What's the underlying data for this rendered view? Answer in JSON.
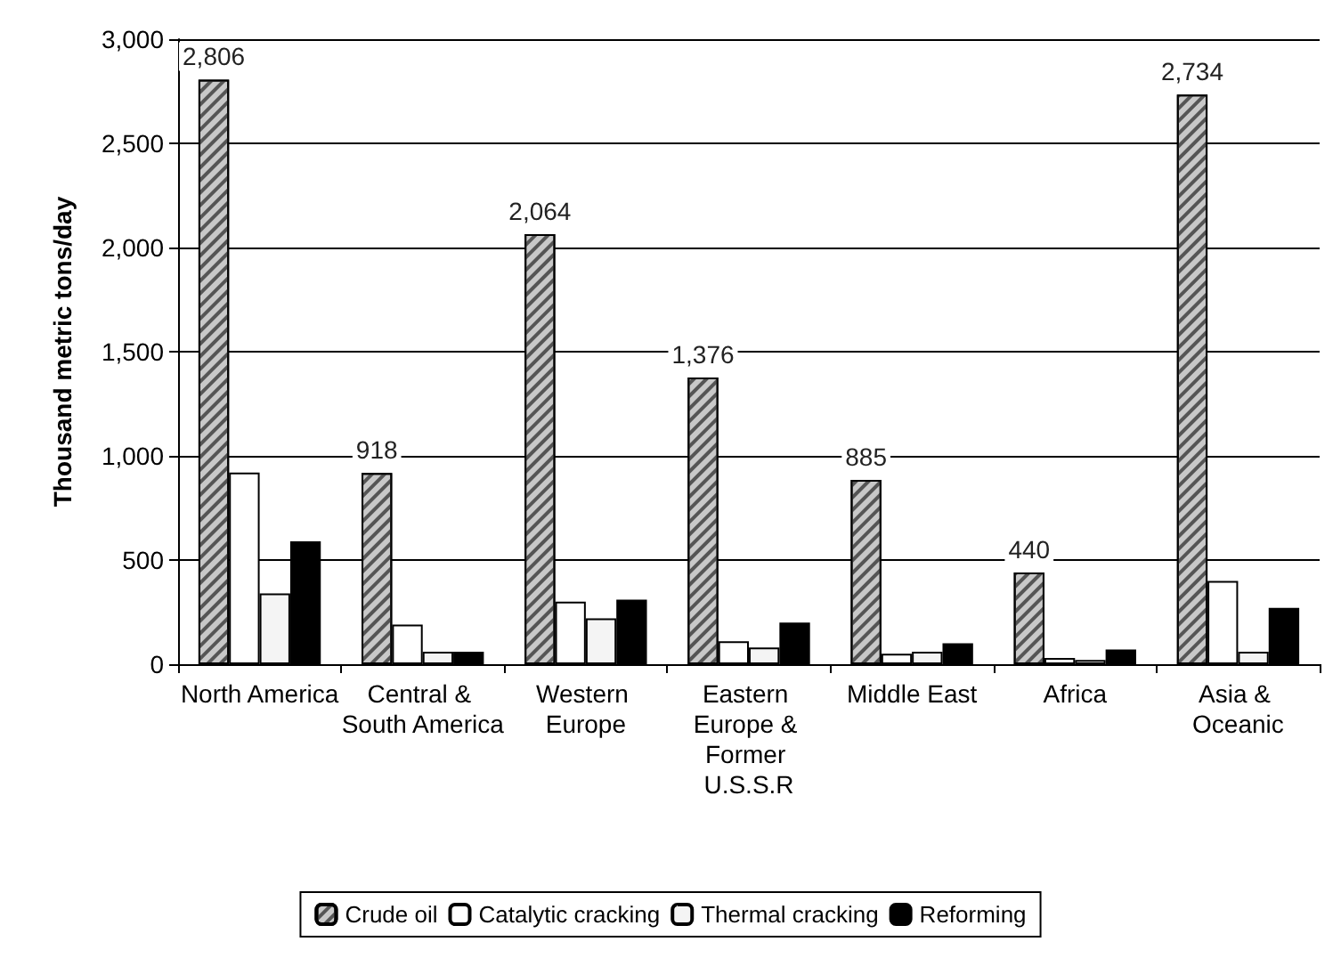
{
  "chart_data": {
    "type": "bar",
    "ylabel": "Thousand metric tons/day",
    "categories": [
      "North America",
      "Central & South America",
      "Western Europe",
      "Eastern Europe & Former U.S.S.R",
      "Middle East",
      "Africa",
      "Asia & Oceanic"
    ],
    "series": [
      {
        "name": "Crude oil",
        "color": "#c8c8c8",
        "values": [
          2806,
          918,
          2064,
          1376,
          885,
          440,
          2734
        ],
        "value_labels": [
          "2,806",
          "918",
          "2,064",
          "1,376",
          "885",
          "440",
          "2,734"
        ]
      },
      {
        "name": "Catalytic cracking",
        "color": "#ffffff",
        "values": [
          920,
          190,
          300,
          110,
          50,
          30,
          400
        ]
      },
      {
        "name": "Thermal cracking",
        "color": "#f4f4f4",
        "values": [
          340,
          60,
          220,
          80,
          60,
          20,
          60
        ]
      },
      {
        "name": "Reforming",
        "color": "#000000",
        "values": [
          590,
          60,
          310,
          200,
          100,
          70,
          270
        ]
      }
    ],
    "ylim": [
      0,
      3000
    ],
    "yticks": [
      {
        "value": 0,
        "label": "0"
      },
      {
        "value": 500,
        "label": "500"
      },
      {
        "value": 1000,
        "label": "1,000"
      },
      {
        "value": 1500,
        "label": "1,500"
      },
      {
        "value": 2000,
        "label": "2,000"
      },
      {
        "value": 2500,
        "label": "2,500"
      },
      {
        "value": 3000,
        "label": "3,000"
      }
    ],
    "grid": "y",
    "legend": "bottom"
  }
}
